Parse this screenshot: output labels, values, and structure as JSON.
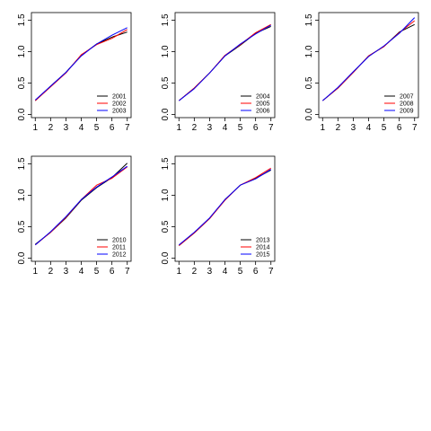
{
  "chart_data": [
    {
      "type": "line",
      "x": [
        1,
        2,
        3,
        4,
        5,
        6,
        7
      ],
      "xticks": [
        "1",
        "2",
        "3",
        "4",
        "5",
        "6",
        "7"
      ],
      "yticks": [
        "0.0",
        "0.5",
        "1.0",
        "1.5"
      ],
      "xlim": [
        0.75,
        7.25
      ],
      "ylim": [
        -0.05,
        1.62
      ],
      "legend_position": "bottom-right",
      "series": [
        {
          "name": "2001",
          "color": "#000000",
          "values": [
            0.22,
            0.45,
            0.67,
            0.94,
            1.12,
            1.23,
            1.31
          ]
        },
        {
          "name": "2002",
          "color": "#ff0000",
          "values": [
            0.22,
            0.44,
            0.66,
            0.95,
            1.11,
            1.21,
            1.35
          ]
        },
        {
          "name": "2003",
          "color": "#0000ff",
          "values": [
            0.23,
            0.45,
            0.67,
            0.93,
            1.12,
            1.26,
            1.38
          ]
        }
      ]
    },
    {
      "type": "line",
      "x": [
        1,
        2,
        3,
        4,
        5,
        6,
        7
      ],
      "xticks": [
        "1",
        "2",
        "3",
        "4",
        "5",
        "6",
        "7"
      ],
      "yticks": [
        "0.0",
        "0.5",
        "1.0",
        "1.5"
      ],
      "xlim": [
        0.75,
        7.25
      ],
      "ylim": [
        -0.05,
        1.62
      ],
      "legend_position": "bottom-right",
      "series": [
        {
          "name": "2004",
          "color": "#000000",
          "values": [
            0.22,
            0.42,
            0.66,
            0.93,
            1.1,
            1.29,
            1.4
          ]
        },
        {
          "name": "2005",
          "color": "#ff0000",
          "values": [
            0.22,
            0.42,
            0.66,
            0.94,
            1.11,
            1.3,
            1.43
          ]
        },
        {
          "name": "2006",
          "color": "#0000ff",
          "values": [
            0.22,
            0.41,
            0.66,
            0.93,
            1.12,
            1.28,
            1.42
          ]
        }
      ]
    },
    {
      "type": "line",
      "x": [
        1,
        2,
        3,
        4,
        5,
        6,
        7
      ],
      "xticks": [
        "1",
        "2",
        "3",
        "4",
        "5",
        "6",
        "7"
      ],
      "yticks": [
        "0.0",
        "0.5",
        "1.0",
        "1.5"
      ],
      "xlim": [
        0.75,
        7.25
      ],
      "ylim": [
        -0.05,
        1.62
      ],
      "legend_position": "bottom-right",
      "series": [
        {
          "name": "2007",
          "color": "#000000",
          "values": [
            0.22,
            0.42,
            0.67,
            0.93,
            1.08,
            1.31,
            1.43
          ]
        },
        {
          "name": "2008",
          "color": "#ff0000",
          "values": [
            0.22,
            0.42,
            0.67,
            0.93,
            1.08,
            1.3,
            1.49
          ]
        },
        {
          "name": "2009",
          "color": "#0000ff",
          "values": [
            0.22,
            0.43,
            0.68,
            0.92,
            1.09,
            1.29,
            1.54
          ]
        }
      ]
    },
    {
      "type": "line",
      "x": [
        1,
        2,
        3,
        4,
        5,
        6,
        7
      ],
      "xticks": [
        "1",
        "2",
        "3",
        "4",
        "5",
        "6",
        "7"
      ],
      "yticks": [
        "0.0",
        "0.5",
        "1.0",
        "1.5"
      ],
      "xlim": [
        0.75,
        7.25
      ],
      "ylim": [
        -0.05,
        1.62
      ],
      "legend_position": "bottom-right",
      "series": [
        {
          "name": "2010",
          "color": "#000000",
          "values": [
            0.22,
            0.41,
            0.64,
            0.92,
            1.12,
            1.28,
            1.51
          ]
        },
        {
          "name": "2011",
          "color": "#ff0000",
          "values": [
            0.21,
            0.41,
            0.65,
            0.93,
            1.16,
            1.27,
            1.45
          ]
        },
        {
          "name": "2012",
          "color": "#0000ff",
          "values": [
            0.21,
            0.42,
            0.66,
            0.93,
            1.13,
            1.29,
            1.46
          ]
        }
      ]
    },
    {
      "type": "line",
      "x": [
        1,
        2,
        3,
        4,
        5,
        6,
        7
      ],
      "xticks": [
        "1",
        "2",
        "3",
        "4",
        "5",
        "6",
        "7"
      ],
      "yticks": [
        "0.0",
        "0.5",
        "1.0",
        "1.5"
      ],
      "xlim": [
        0.75,
        7.25
      ],
      "ylim": [
        -0.05,
        1.62
      ],
      "legend_position": "bottom-right",
      "series": [
        {
          "name": "2013",
          "color": "#000000",
          "values": [
            0.2,
            0.4,
            0.63,
            0.93,
            1.16,
            1.27,
            1.4
          ]
        },
        {
          "name": "2014",
          "color": "#ff0000",
          "values": [
            0.2,
            0.4,
            0.63,
            0.92,
            1.16,
            1.28,
            1.43
          ]
        },
        {
          "name": "2015",
          "color": "#0000ff",
          "values": [
            0.21,
            0.41,
            0.64,
            0.93,
            1.16,
            1.26,
            1.41
          ]
        }
      ]
    }
  ]
}
